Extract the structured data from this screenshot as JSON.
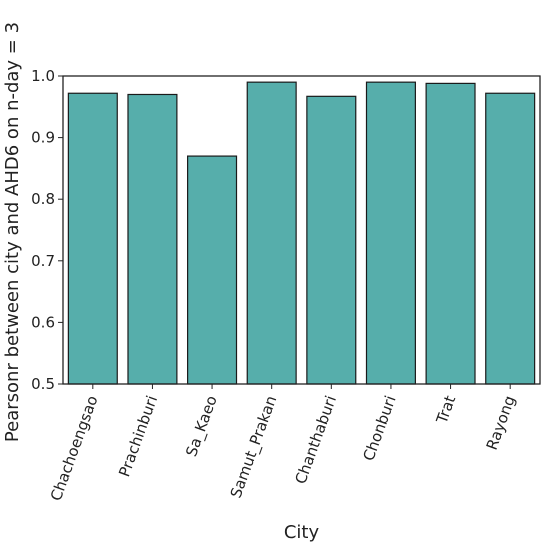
{
  "chart_data": {
    "type": "bar",
    "categories": [
      "Chachoengsao",
      "Prachinburi",
      "Sa_Kaeo",
      "Samut_Prakan",
      "Chanthaburi",
      "Chonburi",
      "Trat",
      "Rayong"
    ],
    "values": [
      0.972,
      0.97,
      0.87,
      0.99,
      0.967,
      0.99,
      0.988,
      0.972
    ],
    "xlabel": "City",
    "ylabel": "Pearsonr between city and AHD6 on n-day = 3",
    "ylim": [
      0.5,
      1.0
    ],
    "yticks": [
      "0.5",
      "0.6",
      "0.7",
      "0.8",
      "0.9",
      "1.0"
    ],
    "grid": false,
    "bar_color": "#56aeab",
    "edge_color": "#1a1a1a"
  }
}
